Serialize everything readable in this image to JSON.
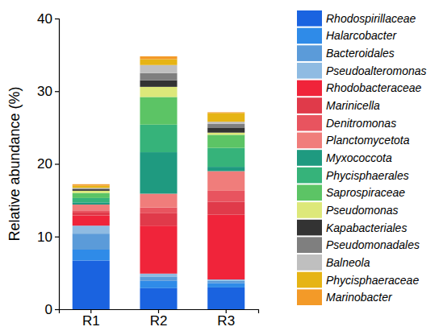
{
  "chart_data": {
    "type": "bar",
    "stacked": true,
    "grid": false,
    "legend": "right",
    "y_label": "Relative abundance (%)",
    "categories": [
      "R1",
      "R2",
      "R3"
    ],
    "ylim": [
      0,
      40
    ],
    "yticks": [
      0,
      10,
      20,
      30,
      40
    ],
    "series": [
      {
        "name": "Rhodospirillaceae",
        "color": "#1a63e0",
        "values": [
          6.7,
          2.9,
          3.0
        ]
      },
      {
        "name": "Halarcobacter",
        "color": "#2f8be8",
        "values": [
          1.5,
          1.0,
          0.6
        ]
      },
      {
        "name": "Bacteroidales",
        "color": "#5b9bd9",
        "values": [
          2.2,
          0.6,
          0.3
        ]
      },
      {
        "name": "Pseudoalteromonas",
        "color": "#8fbbe2",
        "values": [
          1.1,
          0.4,
          0.2
        ]
      },
      {
        "name": "Rhodobacteraceae",
        "color": "#f0243a",
        "values": [
          1.4,
          6.6,
          8.9
        ]
      },
      {
        "name": "Marinicella",
        "color": "#e03a4a",
        "values": [
          0.4,
          1.7,
          1.8
        ]
      },
      {
        "name": "Denitromonas",
        "color": "#e8545f",
        "values": [
          0.3,
          0.8,
          1.5
        ]
      },
      {
        "name": "Planctomycetota",
        "color": "#f07d7b",
        "values": [
          0.8,
          1.9,
          2.7
        ]
      },
      {
        "name": "Myxococcota",
        "color": "#1f9a80",
        "values": [
          0.3,
          5.7,
          0.6
        ]
      },
      {
        "name": "Phycisphaerales",
        "color": "#36b37a",
        "values": [
          0.6,
          3.8,
          2.6
        ]
      },
      {
        "name": "Saprospiraceae",
        "color": "#5cc465",
        "values": [
          0.7,
          3.8,
          1.8
        ]
      },
      {
        "name": "Pseudomonas",
        "color": "#dde87a",
        "values": [
          0.3,
          1.4,
          0.3
        ]
      },
      {
        "name": "Kapabacteriales",
        "color": "#333333",
        "values": [
          0.2,
          0.9,
          0.7
        ]
      },
      {
        "name": "Pseudomonadales",
        "color": "#7f7f7f",
        "values": [
          0.1,
          1.0,
          0.5
        ]
      },
      {
        "name": "Balneola",
        "color": "#bfbfbf",
        "values": [
          0.1,
          1.1,
          0.3
        ]
      },
      {
        "name": "Phycisphaeraceae",
        "color": "#e6b414",
        "values": [
          0.3,
          0.8,
          1.2
        ]
      },
      {
        "name": "Marinobacter",
        "color": "#f39a28",
        "values": [
          0.2,
          0.4,
          0.1
        ]
      }
    ]
  }
}
